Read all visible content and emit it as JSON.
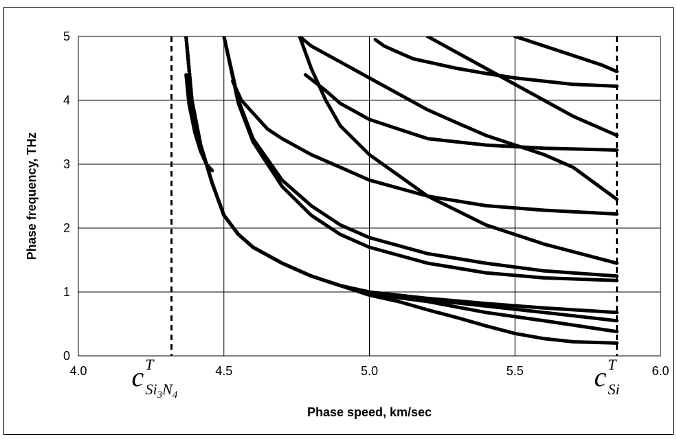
{
  "chart_data": {
    "type": "scatter",
    "title": "",
    "xlabel": "Phase speed,   km/sec",
    "ylabel": "Phase frequency,   THz",
    "xlim": [
      4.0,
      6.0
    ],
    "ylim": [
      0,
      5
    ],
    "xticks": [
      "4.0",
      "4.5",
      "5.0",
      "5.5",
      "6.0"
    ],
    "yticks": [
      "0",
      "1",
      "2",
      "3",
      "4",
      "5"
    ],
    "grid": true,
    "legend": "none",
    "marker_color": "#000000",
    "reference_lines": [
      {
        "x": 4.32,
        "style": "dashed",
        "label_main": "c",
        "label_sup": "T",
        "label_sub": "Si",
        "label_sub_index": "3",
        "label_sub_2": "N",
        "label_sub_index_2": "4"
      },
      {
        "x": 5.85,
        "style": "dashed",
        "label_main": "c",
        "label_sup": "T",
        "label_sub": "Si"
      }
    ],
    "series": [
      {
        "x": [
          4.37,
          4.39,
          4.42,
          4.46,
          4.5,
          4.55,
          4.6,
          4.7,
          4.8,
          4.9,
          5.0,
          5.1,
          5.2,
          5.3,
          5.4,
          5.5,
          5.6,
          5.7,
          5.85
        ],
        "y": [
          5.0,
          4.0,
          3.3,
          2.7,
          2.2,
          1.9,
          1.7,
          1.45,
          1.25,
          1.1,
          0.95,
          0.85,
          0.72,
          0.6,
          0.47,
          0.35,
          0.27,
          0.22,
          0.2
        ]
      },
      {
        "x": [
          4.37,
          4.39,
          4.42,
          4.46,
          4.5,
          4.55,
          4.6,
          4.7,
          4.8,
          4.9,
          5.0,
          5.2,
          5.4,
          5.6,
          5.85
        ],
        "y": [
          5.0,
          4.0,
          3.3,
          2.7,
          2.2,
          1.9,
          1.7,
          1.45,
          1.25,
          1.1,
          0.97,
          0.85,
          0.68,
          0.55,
          0.38
        ]
      },
      {
        "x": [
          4.37,
          4.39,
          4.42,
          4.46,
          4.5,
          4.55,
          4.6,
          4.7,
          4.8,
          4.9,
          5.0,
          5.2,
          5.4,
          5.6,
          5.85
        ],
        "y": [
          5.0,
          4.0,
          3.3,
          2.7,
          2.2,
          1.9,
          1.7,
          1.45,
          1.25,
          1.1,
          0.99,
          0.88,
          0.78,
          0.68,
          0.55
        ]
      },
      {
        "x": [
          4.37,
          4.39,
          4.42,
          4.46,
          4.5,
          4.55,
          4.6,
          4.7,
          4.8,
          4.9,
          5.0,
          5.2,
          5.4,
          5.6,
          5.85
        ],
        "y": [
          5.0,
          4.0,
          3.3,
          2.7,
          2.2,
          1.9,
          1.7,
          1.45,
          1.25,
          1.1,
          1.0,
          0.9,
          0.82,
          0.75,
          0.68
        ]
      },
      {
        "x": [
          4.37,
          4.38,
          4.4,
          4.42,
          4.44,
          4.46
        ],
        "y": [
          4.4,
          3.95,
          3.5,
          3.2,
          3.0,
          2.9
        ]
      },
      {
        "x": [
          4.5,
          4.55,
          4.6,
          4.7,
          4.8,
          4.9,
          5.0,
          5.2,
          5.4,
          5.6,
          5.85
        ],
        "y": [
          5.0,
          4.0,
          3.4,
          2.75,
          2.35,
          2.05,
          1.85,
          1.6,
          1.45,
          1.33,
          1.25
        ]
      },
      {
        "x": [
          4.5,
          4.55,
          4.6,
          4.7,
          4.8,
          4.9,
          5.0,
          5.2,
          5.4,
          5.6,
          5.85
        ],
        "y": [
          5.0,
          3.95,
          3.35,
          2.65,
          2.2,
          1.9,
          1.7,
          1.45,
          1.3,
          1.22,
          1.18
        ]
      },
      {
        "x": [
          4.53,
          4.56,
          4.6,
          4.65,
          4.7,
          4.8,
          4.9,
          5.0,
          5.2,
          5.4,
          5.6,
          5.85
        ],
        "y": [
          4.3,
          4.0,
          3.8,
          3.55,
          3.4,
          3.15,
          2.95,
          2.75,
          2.5,
          2.35,
          2.28,
          2.22
        ]
      },
      {
        "x": [
          4.76,
          4.8,
          4.85,
          4.9,
          5.0,
          5.2,
          5.4,
          5.6,
          5.85
        ],
        "y": [
          5.0,
          4.5,
          4.0,
          3.6,
          3.15,
          2.5,
          2.05,
          1.75,
          1.45
        ]
      },
      {
        "x": [
          4.78,
          4.85,
          4.9,
          5.0,
          5.1,
          5.2,
          5.4,
          5.6,
          5.85
        ],
        "y": [
          4.4,
          4.15,
          3.95,
          3.7,
          3.55,
          3.4,
          3.3,
          3.25,
          3.22
        ]
      },
      {
        "x": [
          4.76,
          4.8,
          4.9,
          5.0,
          5.1,
          5.2,
          5.3,
          5.4,
          5.5,
          5.6,
          5.7,
          5.85
        ],
        "y": [
          5.0,
          4.85,
          4.6,
          4.35,
          4.1,
          3.85,
          3.65,
          3.45,
          3.3,
          3.15,
          2.95,
          2.45
        ]
      },
      {
        "x": [
          5.02,
          5.05,
          5.1,
          5.15,
          5.2,
          5.3,
          5.4,
          5.5,
          5.6,
          5.7,
          5.85
        ],
        "y": [
          4.95,
          4.85,
          4.75,
          4.65,
          4.6,
          4.5,
          4.42,
          4.35,
          4.3,
          4.25,
          4.22
        ]
      },
      {
        "x": [
          5.2,
          5.3,
          5.4,
          5.5,
          5.6,
          5.7,
          5.85
        ],
        "y": [
          5.0,
          4.75,
          4.5,
          4.25,
          4.0,
          3.75,
          3.45
        ]
      },
      {
        "x": [
          5.5,
          5.6,
          5.7,
          5.8,
          5.85
        ],
        "y": [
          5.0,
          4.85,
          4.7,
          4.55,
          4.45
        ]
      }
    ]
  }
}
